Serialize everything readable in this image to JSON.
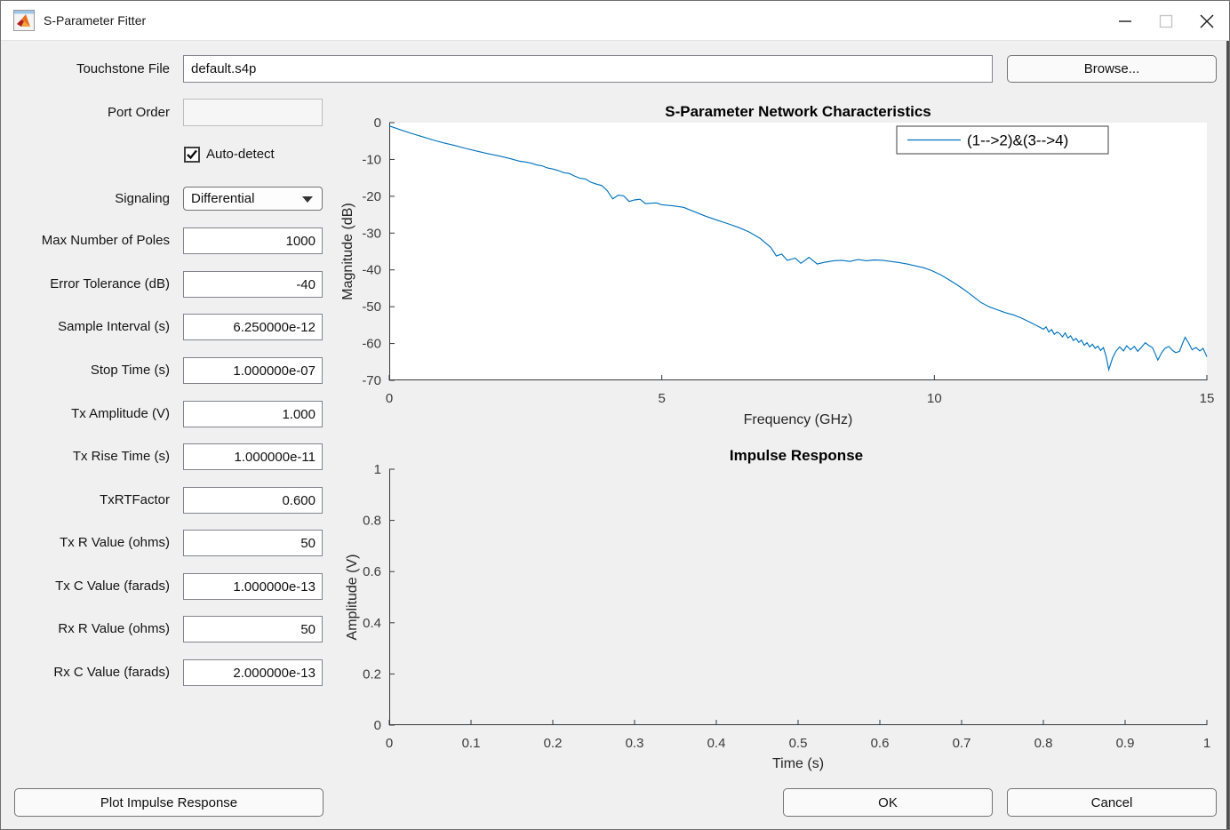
{
  "window": {
    "title": "S-Parameter Fitter",
    "controls": {
      "minimize": "minimize",
      "maximize": "maximize",
      "close": "close"
    }
  },
  "form": {
    "touchstone": {
      "label": "Touchstone File",
      "value": "default.s4p"
    },
    "browse_label": "Browse...",
    "port_order": {
      "label": "Port Order",
      "value": "",
      "enabled": false
    },
    "auto_detect": {
      "label": "Auto-detect",
      "checked": true
    },
    "signaling": {
      "label": "Signaling",
      "value": "Differential"
    },
    "fields": [
      {
        "label": "Max Number of Poles",
        "value": "1000"
      },
      {
        "label": "Error Tolerance (dB)",
        "value": "-40"
      },
      {
        "label": "Sample Interval (s)",
        "value": "6.250000e-12"
      },
      {
        "label": "Stop Time (s)",
        "value": "1.000000e-07"
      },
      {
        "label": "Tx Amplitude (V)",
        "value": "1.000"
      },
      {
        "label": "Tx Rise Time (s)",
        "value": "1.000000e-11"
      },
      {
        "label": "TxRTFactor",
        "value": "0.600"
      },
      {
        "label": "Tx R Value (ohms)",
        "value": "50"
      },
      {
        "label": "Tx C Value (farads)",
        "value": "1.000000e-13"
      },
      {
        "label": "Rx R Value (ohms)",
        "value": "50"
      },
      {
        "label": "Rx C Value (farads)",
        "value": "2.000000e-13"
      }
    ]
  },
  "buttons": {
    "plot_impulse": "Plot Impulse Response",
    "ok": "OK",
    "cancel": "Cancel"
  },
  "colors": {
    "series_blue": "#0072BD",
    "window_bg": "#f0f0f0",
    "plot_bg": "#ffffff"
  },
  "chart_data": [
    {
      "type": "line",
      "title": "S-Parameter Network Characteristics",
      "xlabel": "Frequency (GHz)",
      "ylabel": "Magnitude (dB)",
      "xlim": [
        0,
        15
      ],
      "ylim": [
        -70,
        0
      ],
      "xticks": [
        0,
        5,
        10,
        15
      ],
      "xtick_labels": [
        "0",
        "5",
        "10",
        "15"
      ],
      "yticks": [
        0,
        -10,
        -20,
        -30,
        -40,
        -50,
        -60,
        -70
      ],
      "ytick_labels": [
        "0",
        "-10",
        "-20",
        "-30",
        "-40",
        "-50",
        "-60",
        "-70"
      ],
      "grid": false,
      "plot_bg": "#ffffff",
      "line_color": "#0072BD",
      "legend": {
        "position": "northeast",
        "entries": [
          "(1-->2)&(3-->4)"
        ]
      },
      "series": [
        {
          "name": "(1-->2)&(3-->4)",
          "points": [
            [
              0,
              -0.9
            ],
            [
              0.2,
              -1.9
            ],
            [
              0.4,
              -2.9
            ],
            [
              0.6,
              -3.8
            ],
            [
              0.8,
              -4.7
            ],
            [
              1,
              -5.5
            ],
            [
              1.2,
              -6.2
            ],
            [
              1.4,
              -7
            ],
            [
              1.6,
              -7.7
            ],
            [
              1.8,
              -8.4
            ],
            [
              2,
              -9
            ],
            [
              2.2,
              -9.7
            ],
            [
              2.4,
              -10.5
            ],
            [
              2.5,
              -10.7
            ],
            [
              2.6,
              -11
            ],
            [
              2.7,
              -11.5
            ],
            [
              2.8,
              -11.7
            ],
            [
              2.9,
              -12.3
            ],
            [
              3,
              -12.6
            ],
            [
              3.1,
              -13
            ],
            [
              3.2,
              -13.6
            ],
            [
              3.3,
              -13.8
            ],
            [
              3.4,
              -14.5
            ],
            [
              3.5,
              -15.1
            ],
            [
              3.6,
              -15.3
            ],
            [
              3.7,
              -16.2
            ],
            [
              3.8,
              -16.7
            ],
            [
              3.9,
              -17.1
            ],
            [
              4,
              -18.5
            ],
            [
              4.1,
              -20.7
            ],
            [
              4.2,
              -19.7
            ],
            [
              4.3,
              -19.9
            ],
            [
              4.4,
              -21.4
            ],
            [
              4.5,
              -21
            ],
            [
              4.6,
              -20.8
            ],
            [
              4.7,
              -22
            ],
            [
              4.8,
              -21.9
            ],
            [
              4.9,
              -21.8
            ],
            [
              5,
              -22.3
            ],
            [
              5.2,
              -22.6
            ],
            [
              5.4,
              -23
            ],
            [
              5.6,
              -24.2
            ],
            [
              5.8,
              -25.4
            ],
            [
              6,
              -26.4
            ],
            [
              6.2,
              -27.4
            ],
            [
              6.4,
              -28.4
            ],
            [
              6.6,
              -29.7
            ],
            [
              6.8,
              -31.4
            ],
            [
              7,
              -33.9
            ],
            [
              7.1,
              -36.2
            ],
            [
              7.2,
              -35.7
            ],
            [
              7.3,
              -37.4
            ],
            [
              7.45,
              -36.8
            ],
            [
              7.55,
              -38.2
            ],
            [
              7.7,
              -36.6
            ],
            [
              7.85,
              -38.4
            ],
            [
              8,
              -37.9
            ],
            [
              8.15,
              -37.5
            ],
            [
              8.3,
              -37.4
            ],
            [
              8.45,
              -37.7
            ],
            [
              8.6,
              -37.2
            ],
            [
              8.75,
              -37.5
            ],
            [
              8.9,
              -37.3
            ],
            [
              9.05,
              -37.4
            ],
            [
              9.2,
              -37.7
            ],
            [
              9.35,
              -38
            ],
            [
              9.5,
              -38.4
            ],
            [
              9.65,
              -38.9
            ],
            [
              9.8,
              -39.4
            ],
            [
              9.95,
              -40.2
            ],
            [
              10.1,
              -41.2
            ],
            [
              10.25,
              -42.5
            ],
            [
              10.4,
              -43.9
            ],
            [
              10.55,
              -45.4
            ],
            [
              10.7,
              -47.1
            ],
            [
              10.85,
              -48.8
            ],
            [
              11,
              -50
            ],
            [
              11.15,
              -50.8
            ],
            [
              11.3,
              -51.6
            ],
            [
              11.45,
              -52.2
            ],
            [
              11.6,
              -53.1
            ],
            [
              11.75,
              -54.2
            ],
            [
              11.9,
              -55.3
            ],
            [
              12,
              -56.1
            ],
            [
              12.05,
              -55.5
            ],
            [
              12.1,
              -56.9
            ],
            [
              12.15,
              -56.2
            ],
            [
              12.2,
              -57.5
            ],
            [
              12.25,
              -56.9
            ],
            [
              12.3,
              -57.3
            ],
            [
              12.35,
              -58.2
            ],
            [
              12.4,
              -57.1
            ],
            [
              12.45,
              -58.5
            ],
            [
              12.5,
              -57.9
            ],
            [
              12.55,
              -59.2
            ],
            [
              12.6,
              -58.6
            ],
            [
              12.65,
              -59.7
            ],
            [
              12.7,
              -59.1
            ],
            [
              12.75,
              -60.5
            ],
            [
              12.8,
              -59.8
            ],
            [
              12.85,
              -60.9
            ],
            [
              12.9,
              -60.2
            ],
            [
              12.95,
              -61.3
            ],
            [
              13,
              -60.7
            ],
            [
              13.05,
              -61.9
            ],
            [
              13.1,
              -61.1
            ],
            [
              13.15,
              -63.4
            ],
            [
              13.2,
              -67.1
            ],
            [
              13.27,
              -63.9
            ],
            [
              13.33,
              -62.1
            ],
            [
              13.4,
              -60.9
            ],
            [
              13.47,
              -62
            ],
            [
              13.53,
              -60.6
            ],
            [
              13.6,
              -61.7
            ],
            [
              13.67,
              -60.8
            ],
            [
              13.73,
              -62.1
            ],
            [
              13.8,
              -61
            ],
            [
              13.87,
              -59.8
            ],
            [
              13.93,
              -60.5
            ],
            [
              14,
              -61.1
            ],
            [
              14.05,
              -62.7
            ],
            [
              14.1,
              -64.5
            ],
            [
              14.17,
              -62.5
            ],
            [
              14.23,
              -61.3
            ],
            [
              14.3,
              -60.8
            ],
            [
              14.37,
              -61.9
            ],
            [
              14.43,
              -62.5
            ],
            [
              14.5,
              -62.1
            ],
            [
              14.55,
              -60.1
            ],
            [
              14.6,
              -58.3
            ],
            [
              14.67,
              -60
            ],
            [
              14.73,
              -61.7
            ],
            [
              14.8,
              -61.1
            ],
            [
              14.87,
              -62
            ],
            [
              14.93,
              -61.3
            ],
            [
              15,
              -63.6
            ]
          ]
        }
      ]
    },
    {
      "type": "line",
      "title": "Impulse Response",
      "xlabel": "Time (s)",
      "ylabel": "Amplitude (V)",
      "xlim": [
        0,
        1
      ],
      "ylim": [
        0,
        1
      ],
      "xticks": [
        0,
        0.1,
        0.2,
        0.3,
        0.4,
        0.5,
        0.6,
        0.7,
        0.8,
        0.9,
        1
      ],
      "xtick_labels": [
        "0",
        "0.1",
        "0.2",
        "0.3",
        "0.4",
        "0.5",
        "0.6",
        "0.7",
        "0.8",
        "0.9",
        "1"
      ],
      "yticks": [
        0,
        0.2,
        0.4,
        0.6,
        0.8,
        1
      ],
      "ytick_labels": [
        "0",
        "0.2",
        "0.4",
        "0.6",
        "0.8",
        "1"
      ],
      "grid": false,
      "plot_bg": "",
      "line_color": "#0072BD",
      "legend": null,
      "series": []
    }
  ]
}
